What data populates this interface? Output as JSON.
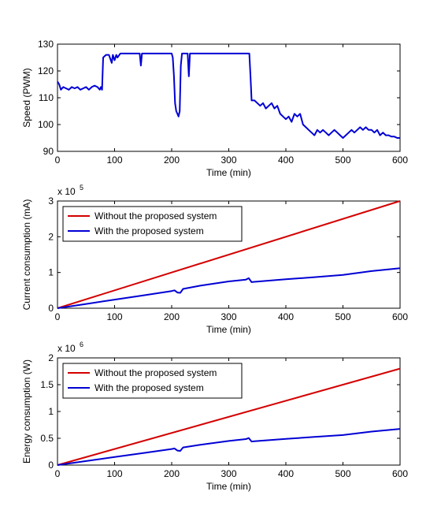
{
  "colors": {
    "red": "#d40000",
    "blue": "#0000d4",
    "axis": "#000000"
  },
  "chart_data": [
    {
      "type": "line",
      "xlabel": "Time (min)",
      "ylabel": "Speed (PWM)",
      "xlim": [
        0,
        600
      ],
      "ylim": [
        90,
        130
      ],
      "xticks": [
        "0",
        "100",
        "200",
        "300",
        "400",
        "500",
        "600"
      ],
      "yticks": [
        "90",
        "100",
        "110",
        "120",
        "130"
      ],
      "exponent": "",
      "grid": false,
      "series": [
        {
          "name": "",
          "color": "#0000d4",
          "x": [
            0,
            3,
            6,
            10,
            15,
            20,
            25,
            30,
            35,
            40,
            45,
            50,
            55,
            60,
            65,
            70,
            74,
            76,
            78,
            80,
            85,
            90,
            95,
            97,
            100,
            103,
            105,
            110,
            140,
            144,
            146,
            148,
            150,
            200,
            202,
            204,
            206,
            208,
            210,
            212,
            214,
            216,
            218,
            220,
            222,
            224,
            226,
            228,
            230,
            232,
            234,
            236,
            240,
            300,
            336,
            338,
            340,
            345,
            350,
            355,
            360,
            365,
            370,
            375,
            380,
            385,
            390,
            395,
            400,
            405,
            410,
            415,
            420,
            425,
            430,
            435,
            440,
            445,
            450,
            455,
            460,
            465,
            470,
            475,
            480,
            485,
            490,
            495,
            500,
            505,
            510,
            515,
            520,
            525,
            530,
            535,
            540,
            545,
            550,
            555,
            560,
            565,
            570,
            575,
            580,
            585,
            590,
            595,
            600
          ],
          "y": [
            116,
            115,
            113,
            114,
            113.5,
            113,
            114,
            113.5,
            114,
            113,
            113.5,
            114,
            113,
            114,
            114.5,
            114,
            113,
            114,
            113,
            125,
            126,
            126,
            123,
            126,
            124,
            126,
            125,
            126.5,
            126.5,
            126.5,
            122,
            126.5,
            126.5,
            126.5,
            125,
            118,
            108,
            105,
            104,
            103,
            105,
            122,
            126.5,
            126.5,
            126.5,
            126.5,
            126.5,
            126.5,
            118,
            126.5,
            126.5,
            126.5,
            126.5,
            126.5,
            126.5,
            118,
            109,
            109,
            108,
            107,
            108,
            106,
            107,
            108,
            106,
            107,
            104,
            103,
            102,
            103,
            101,
            104,
            103,
            104,
            100,
            99,
            98,
            97,
            96,
            98,
            97,
            98,
            97,
            96,
            97,
            98,
            97,
            96,
            95,
            96,
            97,
            98,
            97,
            98,
            99,
            98,
            99,
            98,
            98,
            97,
            98,
            96,
            97,
            96,
            96,
            95.5,
            95.5,
            95,
            95
          ]
        }
      ]
    },
    {
      "type": "line",
      "xlabel": "Time (min)",
      "ylabel": "Current consumption (mA)",
      "xlim": [
        0,
        600
      ],
      "ylim": [
        0,
        300000
      ],
      "xticks": [
        "0",
        "100",
        "200",
        "300",
        "400",
        "500",
        "600"
      ],
      "yticks": [
        "0",
        "1",
        "2",
        "3"
      ],
      "exponent": "x 10",
      "exponent_power": "5",
      "grid": false,
      "legend_position": "top-left",
      "series": [
        {
          "name": "Without the proposed system",
          "color": "#d40000",
          "x": [
            0,
            600
          ],
          "y": [
            0,
            300000
          ]
        },
        {
          "name": "With the proposed system",
          "color": "#0000d4",
          "x": [
            0,
            50,
            100,
            150,
            200,
            205,
            210,
            215,
            220,
            250,
            300,
            330,
            335,
            340,
            345,
            400,
            450,
            500,
            550,
            600
          ],
          "y": [
            0,
            12000,
            24000,
            36000,
            48000,
            50000,
            44000,
            43000,
            54000,
            63000,
            75000,
            80000,
            84000,
            73000,
            74000,
            81000,
            87000,
            93000,
            104000,
            112000
          ]
        }
      ]
    },
    {
      "type": "line",
      "xlabel": "Time (min)",
      "ylabel": "Energy consumption (W)",
      "xlim": [
        0,
        600
      ],
      "ylim": [
        0,
        2000000
      ],
      "xticks": [
        "0",
        "100",
        "200",
        "300",
        "400",
        "500",
        "600"
      ],
      "yticks": [
        "0",
        "0.5",
        "1",
        "1.5",
        "2"
      ],
      "exponent": "x 10",
      "exponent_power": "6",
      "grid": false,
      "legend_position": "top-left",
      "series": [
        {
          "name": "Without the proposed system",
          "color": "#d40000",
          "x": [
            0,
            600
          ],
          "y": [
            0,
            1800000
          ]
        },
        {
          "name": "With the proposed system",
          "color": "#0000d4",
          "x": [
            0,
            50,
            100,
            150,
            200,
            205,
            210,
            215,
            220,
            250,
            300,
            330,
            335,
            340,
            345,
            400,
            450,
            500,
            550,
            600
          ],
          "y": [
            0,
            75000,
            150000,
            225000,
            300000,
            310000,
            270000,
            265000,
            330000,
            380000,
            450000,
            485000,
            505000,
            440000,
            445000,
            490000,
            525000,
            560000,
            625000,
            675000
          ]
        }
      ]
    }
  ]
}
